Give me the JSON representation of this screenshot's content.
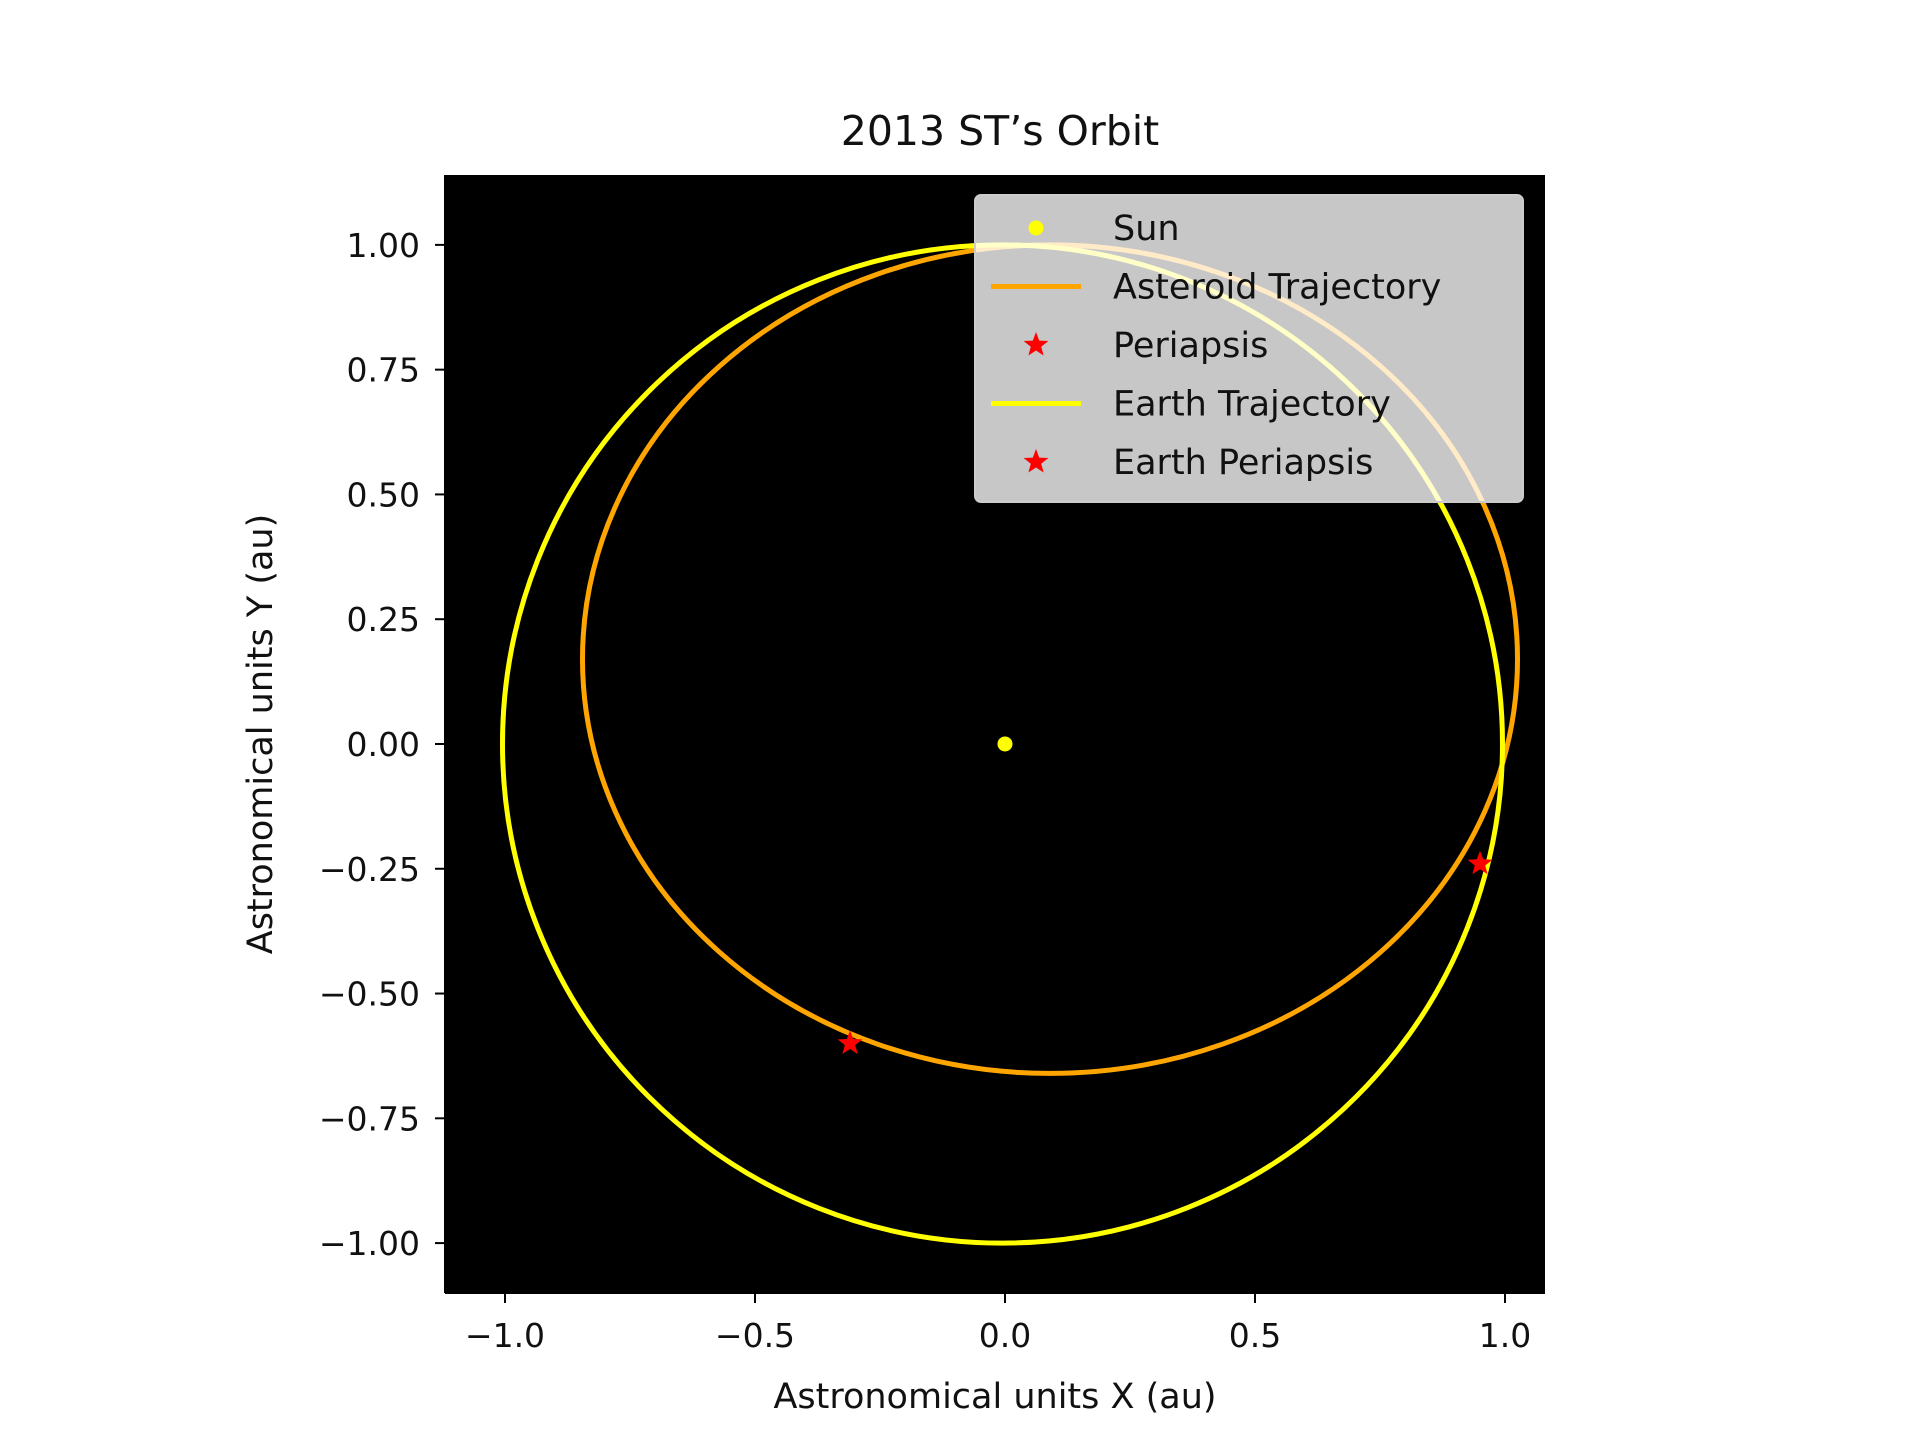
{
  "chart_data": {
    "type": "line",
    "title": "2013 ST’s Orbit",
    "xlabel": "Astronomical units X (au)",
    "ylabel": "Astronomical units Y (au)",
    "xlim": [
      -1.12,
      1.08
    ],
    "ylim": [
      -1.1,
      1.14
    ],
    "xticks": [
      -1.0,
      -0.5,
      0.0,
      0.5,
      1.0
    ],
    "xtick_labels": [
      "−1.0",
      "−0.5",
      "0.0",
      "0.5",
      "1.0"
    ],
    "yticks": [
      1.0,
      0.75,
      0.5,
      0.25,
      0.0,
      -0.25,
      -0.5,
      -0.75,
      -1.0
    ],
    "ytick_labels": [
      "1.00",
      "0.75",
      "0.50",
      "0.25",
      "0.00",
      "−0.25",
      "−0.50",
      "−0.75",
      "−1.00"
    ],
    "background": "#000000",
    "grid": false,
    "legend_position": "top-right",
    "series": [
      {
        "name": "Sun",
        "kind": "point",
        "color": "#ffff00",
        "x": [
          0.0
        ],
        "y": [
          0.0
        ]
      },
      {
        "name": "Asteroid Trajectory",
        "kind": "line",
        "color": "#ffa500",
        "ellipse": {
          "center": [
            0.09,
            0.17
          ],
          "a": 0.935,
          "b": 0.83,
          "e": 0.52
        }
      },
      {
        "name": "Periapsis",
        "kind": "star",
        "color": "#ff0000",
        "x": [
          -0.31
        ],
        "y": [
          -0.6
        ]
      },
      {
        "name": "Earth Trajectory",
        "kind": "line",
        "color": "#ffff00",
        "ellipse": {
          "center": [
            -0.005,
            0.0
          ],
          "a": 1.0,
          "b": 1.0,
          "e": 0.017
        }
      },
      {
        "name": "Earth Periapsis",
        "kind": "star",
        "color": "#ff0000",
        "x": [
          0.95
        ],
        "y": [
          -0.24
        ]
      }
    ]
  }
}
